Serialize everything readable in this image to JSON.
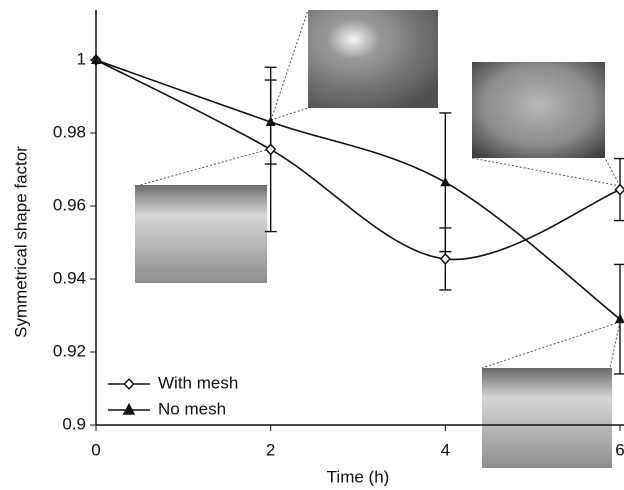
{
  "chart_data": {
    "type": "line",
    "x_label": "Time (h)",
    "y_label": "Symmetrical shape factor",
    "x": [
      0,
      2,
      4,
      6
    ],
    "series": [
      {
        "name": "With mesh",
        "color": "#111111",
        "marker": "diamond",
        "values": [
          1,
          0.9755,
          0.9455,
          0.9645
        ],
        "errors": [
          0,
          0.0225,
          0.0085,
          0.0085
        ]
      },
      {
        "name": "No mesh",
        "color": "#111111",
        "marker": "triangle",
        "values": [
          1,
          0.983,
          0.9665,
          0.929
        ],
        "errors": [
          0,
          0.0115,
          0.019,
          0.015
        ]
      }
    ],
    "xlim": [
      0,
      6
    ],
    "xticks": [
      0,
      2,
      4,
      6
    ],
    "ylim": [
      0.9,
      1
    ],
    "yticks": [
      0.9,
      0.92,
      0.94,
      0.96,
      0.98,
      1
    ],
    "legend": "lower left"
  }
}
